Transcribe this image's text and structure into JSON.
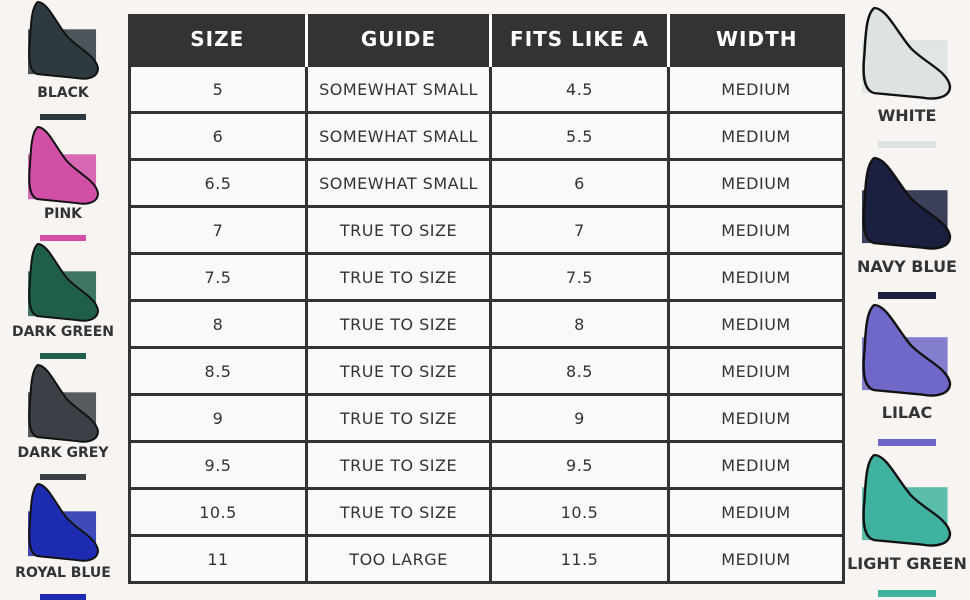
{
  "table": {
    "header": [
      "SIZE",
      "GUIDE",
      "FITS LIKE A",
      "WIDTH"
    ],
    "rows": [
      [
        "5",
        "SOMEWHAT SMALL",
        "4.5",
        "MEDIUM"
      ],
      [
        "6",
        "SOMEWHAT SMALL",
        "5.5",
        "MEDIUM"
      ],
      [
        "6.5",
        "SOMEWHAT SMALL",
        "6",
        "MEDIUM"
      ],
      [
        "7",
        "TRUE TO SIZE",
        "7",
        "MEDIUM"
      ],
      [
        "7.5",
        "TRUE TO SIZE",
        "7.5",
        "MEDIUM"
      ],
      [
        "8",
        "TRUE TO SIZE",
        "8",
        "MEDIUM"
      ],
      [
        "8.5",
        "TRUE TO SIZE",
        "8.5",
        "MEDIUM"
      ],
      [
        "9",
        "TRUE TO SIZE",
        "9",
        "MEDIUM"
      ],
      [
        "9.5",
        "TRUE TO SIZE",
        "9.5",
        "MEDIUM"
      ],
      [
        "10.5",
        "TRUE TO SIZE",
        "10.5",
        "MEDIUM"
      ],
      [
        "11",
        "TOO LARGE",
        "11.5",
        "MEDIUM"
      ]
    ]
  },
  "left_colors": [
    {
      "label": "BLACK",
      "color": "#2e3a40"
    },
    {
      "label": "PINK",
      "color": "#d24fa8"
    },
    {
      "label": "DARK GREEN",
      "color": "#1f5e4b"
    },
    {
      "label": "DARK GREY",
      "color": "#3a4045"
    },
    {
      "label": "ROYAL BLUE",
      "color": "#1d2bb0"
    }
  ],
  "right_colors": [
    {
      "label": "WHITE",
      "color": "#dde3e3"
    },
    {
      "label": "NAVY BLUE",
      "color": "#1b2040"
    },
    {
      "label": "LILAC",
      "color": "#7068c8"
    },
    {
      "label": "LIGHT GREEN",
      "color": "#3fb3a0"
    }
  ]
}
